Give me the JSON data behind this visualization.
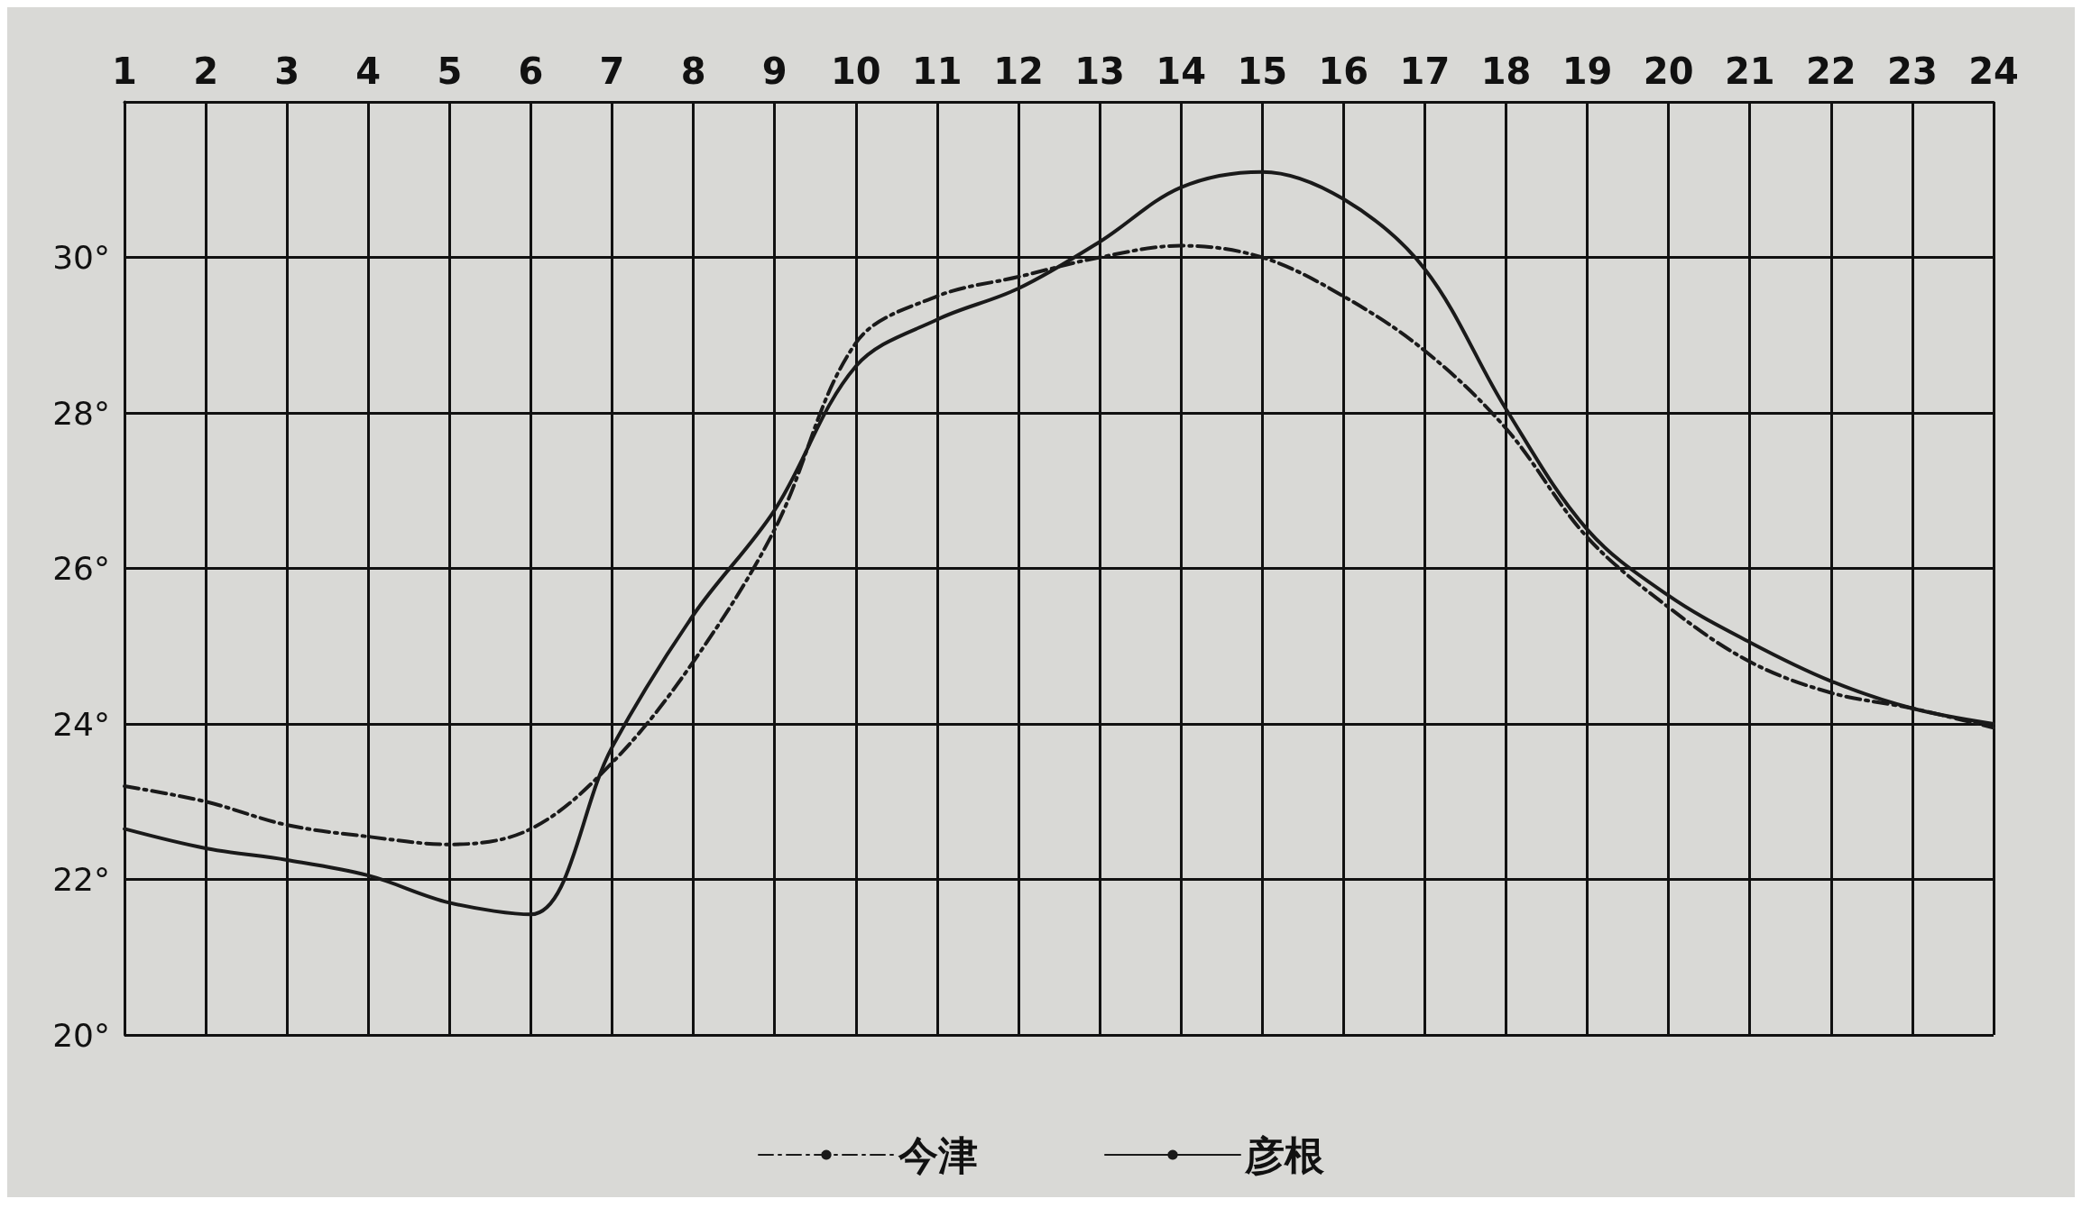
{
  "chart_data": {
    "type": "line",
    "xlim": [
      1,
      24
    ],
    "xticks": [
      1,
      2,
      3,
      4,
      5,
      6,
      7,
      8,
      9,
      10,
      11,
      12,
      13,
      14,
      15,
      16,
      17,
      18,
      19,
      20,
      21,
      22,
      23,
      24
    ],
    "ylim": [
      20,
      32
    ],
    "yticks": [
      {
        "value": 20,
        "label": "20°"
      },
      {
        "value": 22,
        "label": "22°"
      },
      {
        "value": 24,
        "label": "24°"
      },
      {
        "value": 26,
        "label": "26°"
      },
      {
        "value": 28,
        "label": "28°"
      },
      {
        "value": 30,
        "label": "30°"
      },
      {
        "value": 32,
        "label": null
      }
    ],
    "grid": true,
    "legend": "bottom",
    "marker": "none",
    "x": [
      1,
      2,
      3,
      4,
      5,
      6,
      7,
      8,
      9,
      10,
      11,
      12,
      13,
      14,
      15,
      16,
      17,
      18,
      19,
      20,
      21,
      22,
      23,
      24
    ],
    "series": [
      {
        "name": "今津",
        "color": "#1a1a1a",
        "line_style": "dashed",
        "values": [
          23.2,
          23.0,
          22.7,
          22.55,
          22.45,
          22.65,
          23.5,
          24.8,
          26.5,
          28.9,
          29.5,
          29.75,
          30.0,
          30.15,
          30.0,
          29.5,
          28.8,
          27.8,
          26.4,
          25.5,
          24.8,
          24.4,
          24.2,
          23.95
        ]
      },
      {
        "name": "彦根",
        "color": "#1a1a1a",
        "line_style": "solid",
        "values": [
          22.65,
          22.4,
          22.25,
          22.05,
          21.7,
          21.55,
          23.7,
          25.4,
          26.75,
          28.6,
          29.2,
          29.6,
          30.2,
          30.9,
          31.1,
          30.75,
          29.85,
          28.05,
          26.5,
          25.65,
          25.05,
          24.55,
          24.2,
          24.0
        ]
      }
    ]
  }
}
